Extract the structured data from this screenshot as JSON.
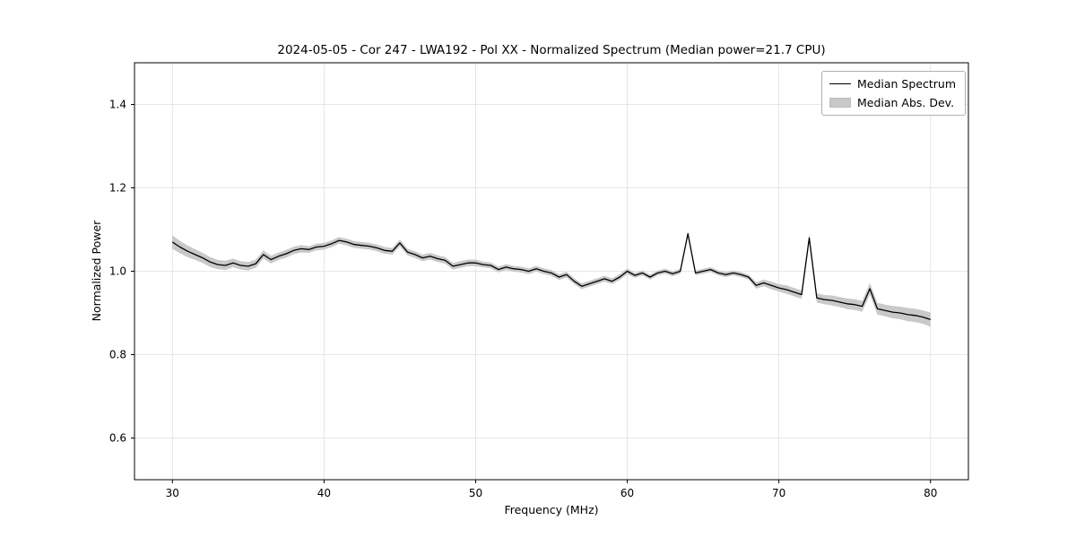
{
  "chart_data": {
    "type": "line",
    "title": "2024-05-05 - Cor 247 - LWA192 - Pol XX - Normalized Spectrum (Median power=21.7 CPU)",
    "xlabel": "Frequency (MHz)",
    "ylabel": "Normalized Power",
    "xlim": [
      27.5,
      82.5
    ],
    "ylim": [
      0.5,
      1.5
    ],
    "x_ticks": [
      30,
      40,
      50,
      60,
      70,
      80
    ],
    "x_tick_labels": [
      "30",
      "40",
      "50",
      "60",
      "70",
      "80"
    ],
    "y_ticks": [
      0.6,
      0.8,
      1.0,
      1.2,
      1.4
    ],
    "y_tick_labels": [
      "0.6",
      "0.8",
      "1.0",
      "1.2",
      "1.4"
    ],
    "grid": true,
    "legend_position": "upper right",
    "colors": {
      "line": "#000000",
      "band": "#c9c9c9",
      "grid": "#dedede",
      "frame": "#000000"
    },
    "x": [
      30,
      30.5,
      31,
      31.5,
      32,
      32.5,
      33,
      33.5,
      34,
      34.5,
      35,
      35.5,
      36,
      36.5,
      37,
      37.5,
      38,
      38.5,
      39,
      39.5,
      40,
      40.5,
      41,
      41.5,
      42,
      42.5,
      43,
      43.5,
      44,
      44.5,
      45,
      45.5,
      46,
      46.5,
      47,
      47.5,
      48,
      48.5,
      49,
      49.5,
      50,
      50.5,
      51,
      51.5,
      52,
      52.5,
      53,
      53.5,
      54,
      54.5,
      55,
      55.5,
      56,
      56.5,
      57,
      57.5,
      58,
      58.5,
      59,
      59.5,
      60,
      60.5,
      61,
      61.5,
      62,
      62.5,
      63,
      63.5,
      64,
      64.5,
      65,
      65.5,
      66,
      66.5,
      67,
      67.5,
      68,
      68.5,
      69,
      69.5,
      70,
      70.5,
      71,
      71.5,
      72,
      72.5,
      73,
      73.5,
      74,
      74.5,
      75,
      75.5,
      76,
      76.5,
      77,
      77.5,
      78,
      78.5,
      79,
      79.5,
      80
    ],
    "series": [
      {
        "name": "Median Spectrum",
        "type": "line",
        "color": "#000000",
        "values": [
          1.07,
          1.058,
          1.048,
          1.04,
          1.032,
          1.022,
          1.016,
          1.014,
          1.02,
          1.014,
          1.012,
          1.018,
          1.04,
          1.028,
          1.036,
          1.042,
          1.05,
          1.054,
          1.052,
          1.058,
          1.06,
          1.066,
          1.074,
          1.07,
          1.064,
          1.062,
          1.06,
          1.056,
          1.05,
          1.048,
          1.068,
          1.046,
          1.04,
          1.032,
          1.036,
          1.03,
          1.026,
          1.012,
          1.016,
          1.02,
          1.02,
          1.016,
          1.014,
          1.004,
          1.01,
          1.006,
          1.004,
          1.0,
          1.006,
          1.0,
          0.996,
          0.986,
          0.992,
          0.976,
          0.964,
          0.97,
          0.976,
          0.982,
          0.976,
          0.986,
          1.0,
          0.99,
          0.996,
          0.986,
          0.996,
          1.0,
          0.994,
          1.0,
          1.09,
          0.996,
          1.0,
          1.004,
          0.996,
          0.992,
          0.996,
          0.992,
          0.986,
          0.966,
          0.972,
          0.966,
          0.96,
          0.956,
          0.95,
          0.944,
          1.08,
          0.936,
          0.932,
          0.93,
          0.926,
          0.922,
          0.92,
          0.916,
          0.958,
          0.91,
          0.906,
          0.902,
          0.9,
          0.896,
          0.894,
          0.89,
          0.884
        ]
      },
      {
        "name": "Median Abs. Dev.",
        "type": "band",
        "color": "#c9c9c9",
        "halfwidth": [
          0.016,
          0.015,
          0.014,
          0.013,
          0.012,
          0.012,
          0.011,
          0.011,
          0.01,
          0.01,
          0.01,
          0.01,
          0.01,
          0.009,
          0.009,
          0.009,
          0.009,
          0.009,
          0.008,
          0.008,
          0.008,
          0.008,
          0.008,
          0.008,
          0.008,
          0.008,
          0.008,
          0.008,
          0.008,
          0.008,
          0.008,
          0.008,
          0.008,
          0.008,
          0.008,
          0.008,
          0.008,
          0.008,
          0.008,
          0.008,
          0.008,
          0.007,
          0.007,
          0.007,
          0.007,
          0.007,
          0.007,
          0.007,
          0.007,
          0.007,
          0.007,
          0.007,
          0.007,
          0.007,
          0.007,
          0.007,
          0.007,
          0.007,
          0.007,
          0.007,
          0.007,
          0.006,
          0.006,
          0.006,
          0.006,
          0.006,
          0.006,
          0.006,
          0.006,
          0.006,
          0.006,
          0.006,
          0.006,
          0.006,
          0.006,
          0.006,
          0.006,
          0.008,
          0.008,
          0.009,
          0.009,
          0.01,
          0.01,
          0.01,
          0.01,
          0.011,
          0.011,
          0.012,
          0.012,
          0.013,
          0.013,
          0.013,
          0.014,
          0.014,
          0.014,
          0.015,
          0.015,
          0.016,
          0.016,
          0.016,
          0.017
        ]
      }
    ]
  }
}
